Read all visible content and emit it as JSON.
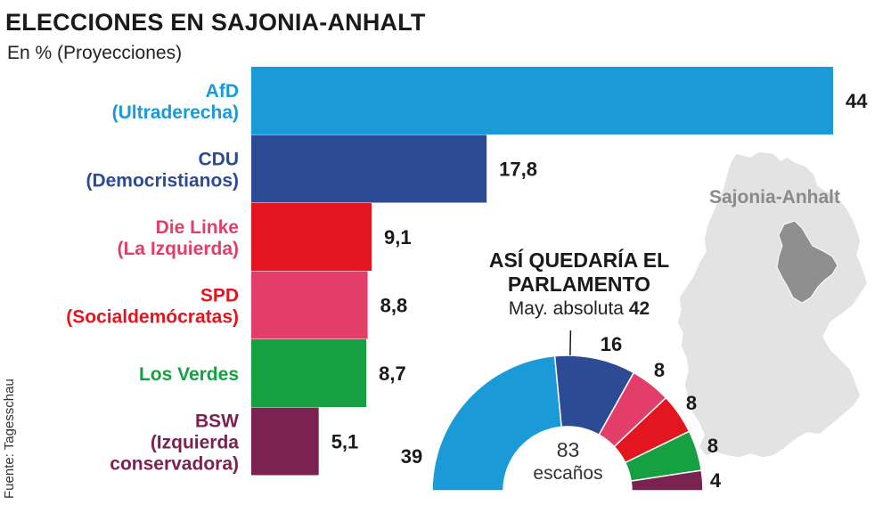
{
  "title": "ELECCIONES EN SAJONIA-ANHALT",
  "subtitle": "En % (Proyecciones)",
  "source": "Fuente: Tagesschau",
  "map": {
    "label": "Sajonia-Anhalt",
    "country_color": "#e3e3e3",
    "region_color": "#8f8f8f"
  },
  "chart_data": [
    {
      "type": "bar",
      "orientation": "horizontal",
      "categories": [
        [
          "AfD",
          "(Ultraderecha)"
        ],
        [
          "CDU",
          "(Democristianos)"
        ],
        [
          "Die Linke",
          "(La Izquierda)"
        ],
        [
          "SPD",
          "(Socialdemócratas)"
        ],
        [
          "Los Verdes"
        ],
        [
          "BSW",
          "(Izquierda",
          "conservadora)"
        ]
      ],
      "values": [
        44,
        17.8,
        9.1,
        8.8,
        8.7,
        5.1
      ],
      "value_labels": [
        "44",
        "17,8",
        "9,1",
        "8,8",
        "8,7",
        "5,1"
      ],
      "bar_colors": [
        "#1a9ad6",
        "#2d4a94",
        "#e3151f",
        "#e33d6a",
        "#16a042",
        "#7a2350"
      ],
      "label_colors": [
        "#1a9ad6",
        "#2d4a94",
        "#e33d6a",
        "#e3151f",
        "#16a042",
        "#7a2350"
      ],
      "grid": false
    },
    {
      "type": "pie",
      "variant": "semicircle-donut",
      "title": "ASÍ QUEDARÍA EL PARLAMENTO",
      "majority_label": "May. absoluta",
      "majority_value": "42",
      "total": "83",
      "total_label": "escaños",
      "values": [
        39,
        16,
        8,
        8,
        8,
        4
      ],
      "value_labels": [
        "39",
        "16",
        "8",
        "8",
        "8",
        "4"
      ],
      "colors": [
        "#1a9ad6",
        "#2d4a94",
        "#e33d6a",
        "#e3151f",
        "#16a042",
        "#7a2350"
      ]
    }
  ]
}
